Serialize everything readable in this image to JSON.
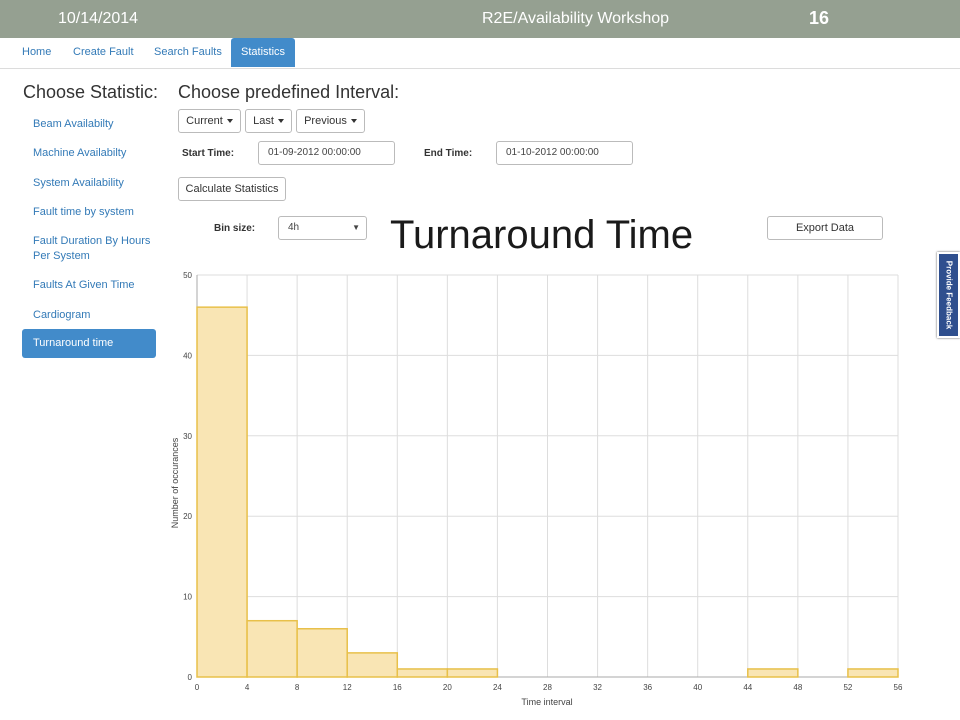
{
  "slide": {
    "date": "10/14/2014",
    "title": "R2E/Availability Workshop",
    "number": "16"
  },
  "nav": {
    "items": [
      "Home",
      "Create Fault",
      "Search Faults",
      "Statistics"
    ],
    "active": "Statistics"
  },
  "sidebar": {
    "heading": "Choose Statistic:",
    "items": [
      "Beam Availabilty",
      "Machine Availabilty",
      "System Availability",
      "Fault time by system",
      "Fault Duration By Hours Per System",
      "Faults At Given Time",
      "Cardiogram",
      "Turnaround time"
    ],
    "active": "Turnaround time"
  },
  "interval": {
    "heading": "Choose predefined Interval:",
    "buttons": [
      "Current",
      "Last",
      "Previous"
    ],
    "start_label": "Start Time:",
    "start_value": "01-09-2012 00:00:00",
    "end_label": "End Time:",
    "end_value": "01-10-2012 00:00:00",
    "calculate_label": "Calculate Statistics"
  },
  "binsize": {
    "label": "Bin size:",
    "value": "4h"
  },
  "export_label": "Export Data",
  "title": "Turnaround Time",
  "feedback_label": "Provide Feedback",
  "chart_data": {
    "type": "bar",
    "title": "",
    "xlabel": "Time interval",
    "ylabel": "Number of occurances",
    "bin_edges": [
      0,
      4,
      8,
      12,
      16,
      20,
      24,
      28,
      32,
      36,
      40,
      44,
      48,
      52,
      56
    ],
    "values": [
      46,
      7,
      6,
      3,
      1,
      1,
      0,
      0,
      0,
      0,
      0,
      1,
      0,
      1
    ],
    "xlim": [
      0,
      56
    ],
    "ylim": [
      0,
      50
    ],
    "y_ticks": [
      0,
      10,
      20,
      30,
      40,
      50
    ],
    "x_ticks": [
      0,
      4,
      8,
      12,
      16,
      20,
      24,
      28,
      32,
      36,
      40,
      44,
      48,
      52,
      56
    ],
    "grid": true,
    "bar_fill": "#f9e5b4",
    "bar_stroke": "#e8c04a"
  }
}
